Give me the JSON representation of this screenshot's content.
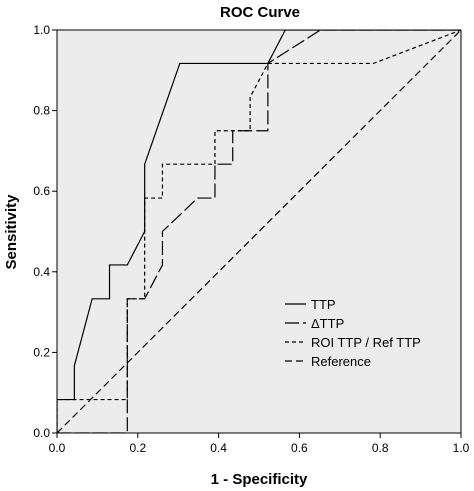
{
  "chart_data": {
    "type": "line",
    "title": "ROC Curve",
    "xlabel": "1 - Specificity",
    "ylabel": "Sensitivity",
    "xlim": [
      0,
      1
    ],
    "ylim": [
      0,
      1
    ],
    "x_ticks": [
      "0.0",
      "0.2",
      "0.4",
      "0.6",
      "0.8",
      "1.0"
    ],
    "y_ticks": [
      "0.0",
      "0.2",
      "0.4",
      "0.6",
      "0.8",
      "1.0"
    ],
    "grid": false,
    "legend_position": "bottom-right",
    "series": [
      {
        "name": "TTP",
        "color": "#000000",
        "style": "solid",
        "points": [
          [
            0,
            0
          ],
          [
            0,
            0.083
          ],
          [
            0.043,
            0.083
          ],
          [
            0.043,
            0.167
          ],
          [
            0.087,
            0.333
          ],
          [
            0.13,
            0.333
          ],
          [
            0.13,
            0.417
          ],
          [
            0.174,
            0.417
          ],
          [
            0.217,
            0.5
          ],
          [
            0.217,
            0.667
          ],
          [
            0.304,
            0.917
          ],
          [
            0.522,
            0.917
          ],
          [
            0.565,
            1.0
          ],
          [
            1.0,
            1.0
          ]
        ]
      },
      {
        "name": "ΔTTP",
        "color": "#000000",
        "style": "longdash",
        "points": [
          [
            0,
            0
          ],
          [
            0.174,
            0
          ],
          [
            0.174,
            0.333
          ],
          [
            0.217,
            0.333
          ],
          [
            0.261,
            0.417
          ],
          [
            0.261,
            0.5
          ],
          [
            0.348,
            0.583
          ],
          [
            0.391,
            0.583
          ],
          [
            0.391,
            0.667
          ],
          [
            0.435,
            0.667
          ],
          [
            0.435,
            0.75
          ],
          [
            0.522,
            0.75
          ],
          [
            0.522,
            0.917
          ],
          [
            0.652,
            1.0
          ],
          [
            1.0,
            1.0
          ]
        ]
      },
      {
        "name": "ROI TTP / Ref TTP",
        "color": "#000000",
        "style": "shortdash",
        "points": [
          [
            0,
            0
          ],
          [
            0,
            0.083
          ],
          [
            0.174,
            0.083
          ],
          [
            0.174,
            0.333
          ],
          [
            0.217,
            0.333
          ],
          [
            0.217,
            0.583
          ],
          [
            0.261,
            0.583
          ],
          [
            0.261,
            0.667
          ],
          [
            0.391,
            0.667
          ],
          [
            0.391,
            0.75
          ],
          [
            0.478,
            0.75
          ],
          [
            0.478,
            0.833
          ],
          [
            0.522,
            0.917
          ],
          [
            0.783,
            0.917
          ],
          [
            1.0,
            1.0
          ]
        ]
      },
      {
        "name": "Reference",
        "color": "#000000",
        "style": "dash",
        "points": [
          [
            0,
            0
          ],
          [
            1,
            1
          ]
        ]
      }
    ]
  }
}
